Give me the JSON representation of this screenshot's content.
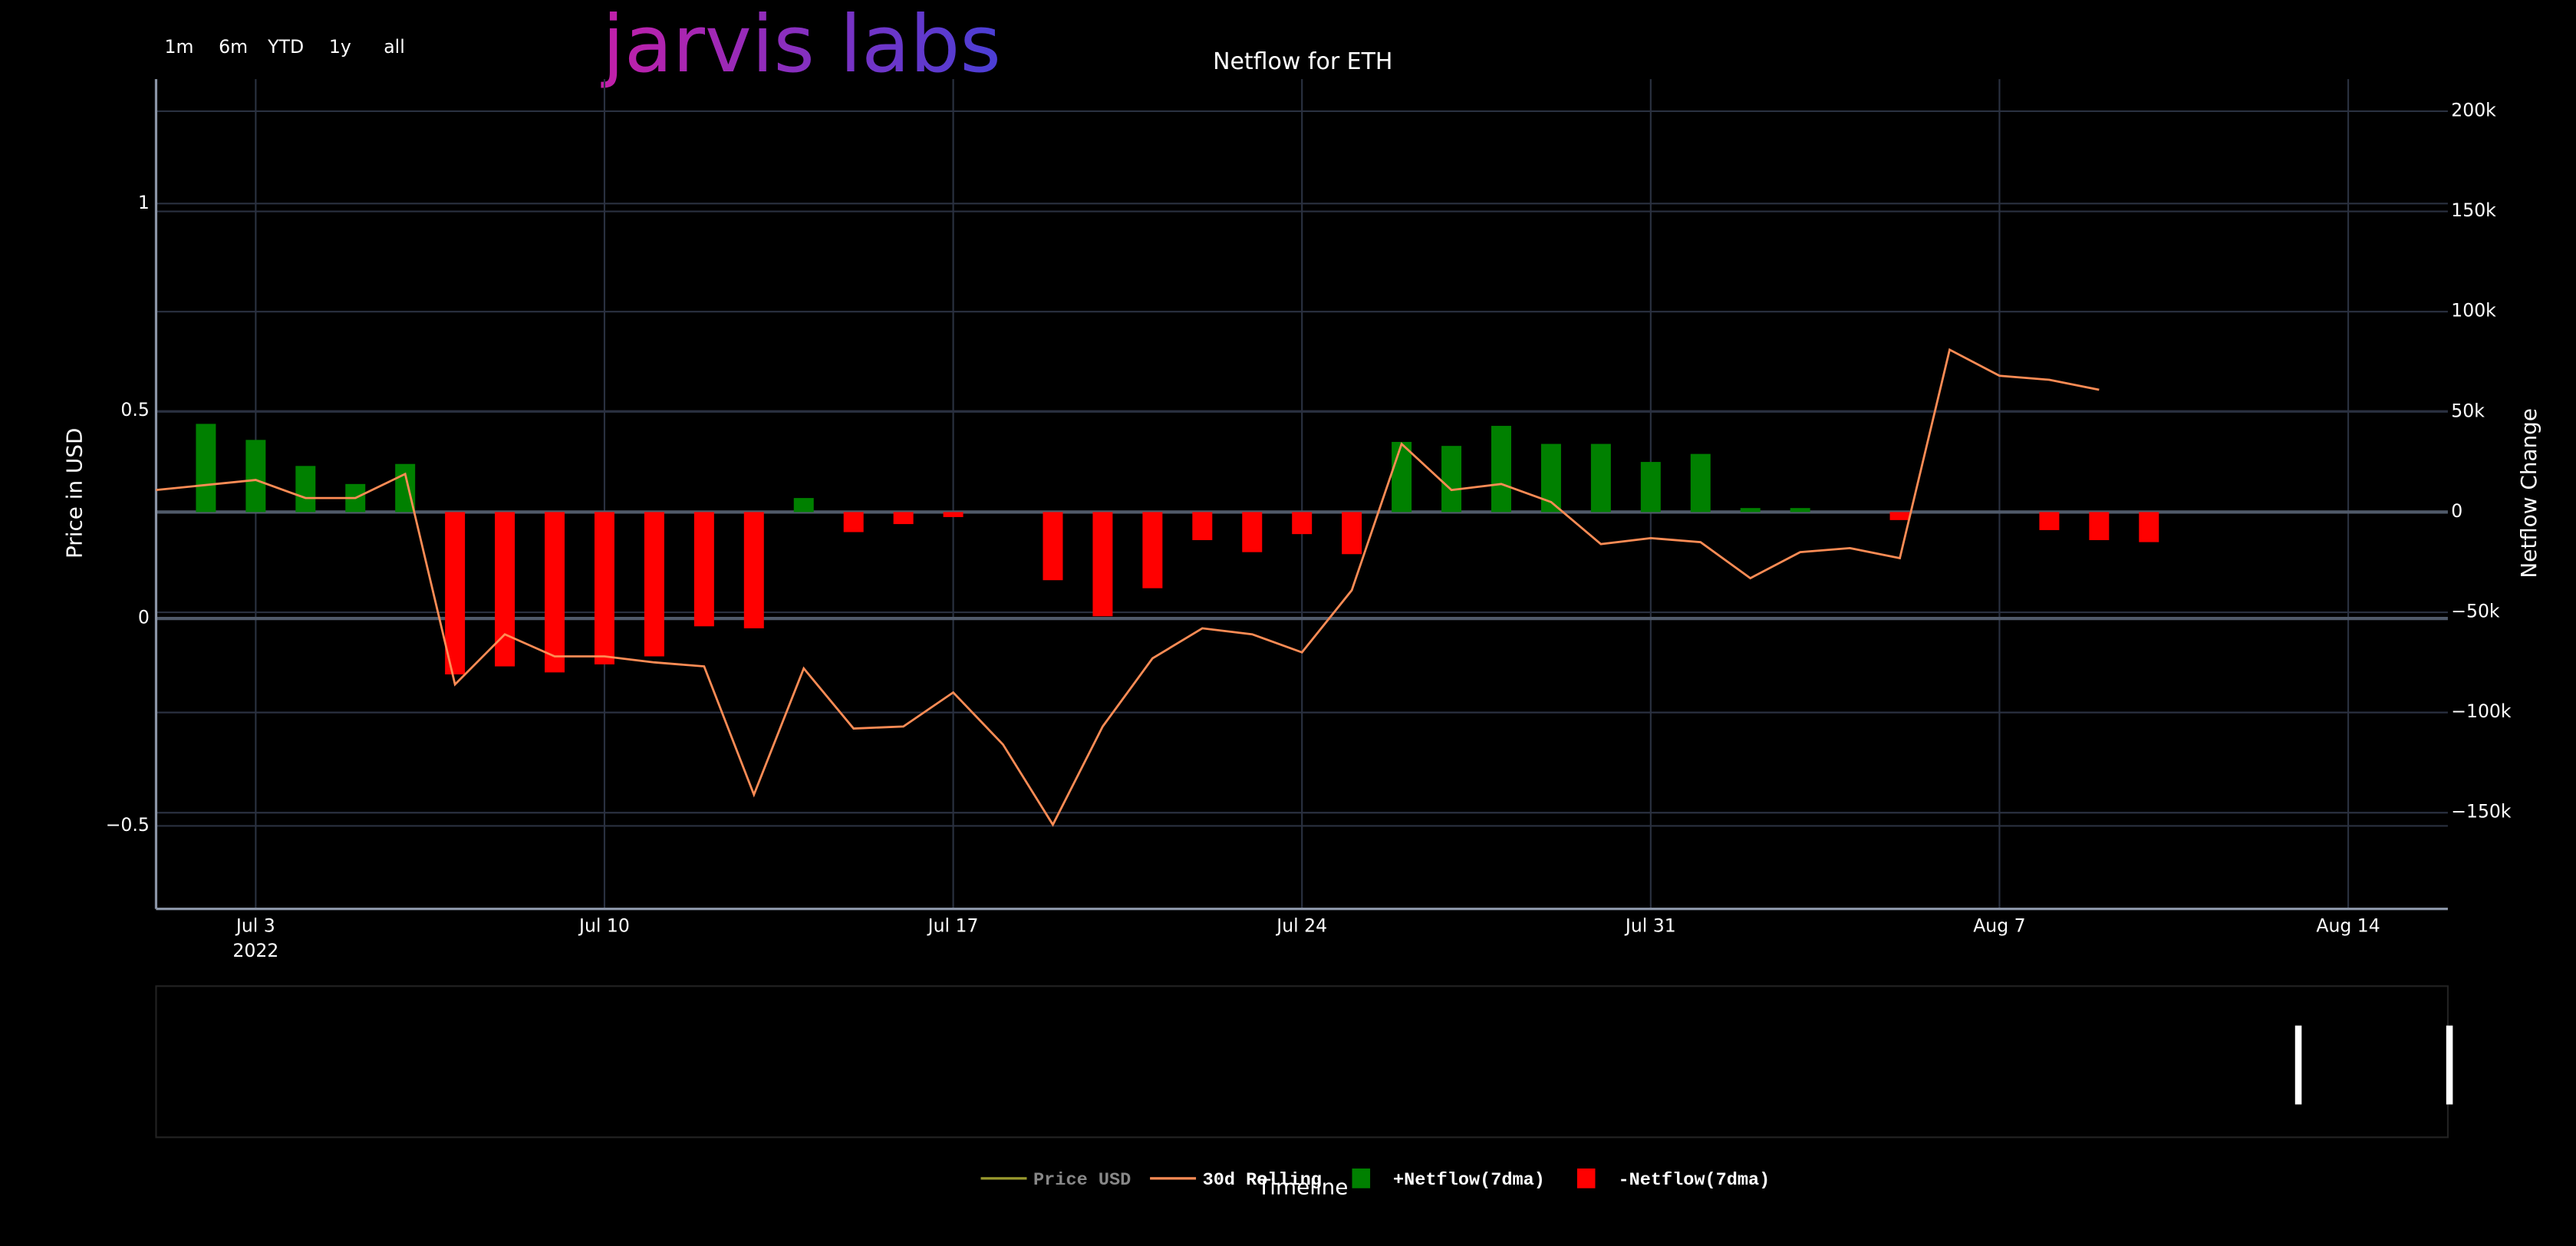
{
  "chart_data": {
    "type": "bar",
    "title": "Netflow for ETH",
    "logo": "jarvis labs",
    "buttons": [
      "1m",
      "6m",
      "YTD",
      "1y",
      "all"
    ],
    "y_label": "Price in USD",
    "y2_label": "Netflow Change",
    "x_label": "Timeline",
    "xlim": [
      "2022-07-01",
      "2022-08-16"
    ],
    "xticks": [
      {
        "value": "2022-07-03",
        "label": "Jul 3"
      },
      {
        "value": "2022-07-10",
        "label": "Jul 10"
      },
      {
        "value": "2022-07-17",
        "label": "Jul 17"
      },
      {
        "value": "2022-07-24",
        "label": "Jul 24"
      },
      {
        "value": "2022-07-31",
        "label": "Jul 31"
      },
      {
        "value": "2022-08-07",
        "label": "Aug 7"
      },
      {
        "value": "2022-08-14",
        "label": "Aug 14"
      }
    ],
    "x_year_label": "2022",
    "ylim": [
      -0.7,
      1.3
    ],
    "yticks": [
      {
        "value": -0.5,
        "label": "−0.5"
      },
      0,
      0.5,
      1
    ],
    "y2lim": [
      -198000,
      216000
    ],
    "y2ticks": [
      {
        "value": -150000,
        "label": "−150k"
      },
      {
        "value": -100000,
        "label": "−100k"
      },
      {
        "value": -50000,
        "label": "−50k"
      },
      0,
      {
        "value": 50000,
        "label": "50k"
      },
      {
        "value": 100000,
        "label": "100k"
      },
      {
        "value": 150000,
        "label": "150k"
      },
      {
        "value": 200000,
        "label": "200k"
      }
    ],
    "grid": true,
    "series": [
      {
        "name": "Price USD",
        "type": "line",
        "color": "#9a9a2e",
        "visible": false
      },
      {
        "name": "30d Rolling",
        "type": "line",
        "axis": "y2",
        "color": "#ff8c55",
        "x": [
          "2022-07-01",
          "2022-07-03",
          "2022-07-04",
          "2022-07-05",
          "2022-07-06",
          "2022-07-07",
          "2022-07-08",
          "2022-07-09",
          "2022-07-10",
          "2022-07-11",
          "2022-07-12",
          "2022-07-13",
          "2022-07-14",
          "2022-07-15",
          "2022-07-16",
          "2022-07-17",
          "2022-07-18",
          "2022-07-19",
          "2022-07-20",
          "2022-07-21",
          "2022-07-22",
          "2022-07-23",
          "2022-07-24",
          "2022-07-25",
          "2022-07-26",
          "2022-07-27",
          "2022-07-28",
          "2022-07-29",
          "2022-07-30",
          "2022-07-31",
          "2022-08-01",
          "2022-08-02",
          "2022-08-03",
          "2022-08-04",
          "2022-08-05",
          "2022-08-06",
          "2022-08-07",
          "2022-08-08",
          "2022-08-09"
        ],
        "values": [
          11000,
          16000,
          7000,
          7000,
          19000,
          -86000,
          -61000,
          -72000,
          -72000,
          -75000,
          -77000,
          -141000,
          -78000,
          -108000,
          -107000,
          -90000,
          -116000,
          -156000,
          -107000,
          -73000,
          -58000,
          -61000,
          -70000,
          -39000,
          34000,
          11000,
          14000,
          5000,
          -16000,
          -13000,
          -15000,
          -33000,
          -20000,
          -18000,
          -23000,
          81000,
          68000,
          66000,
          61000
        ]
      },
      {
        "name": "+Netflow(7dma)",
        "type": "bar",
        "axis": "y2",
        "color": "#008000",
        "x": [
          "2022-07-02",
          "2022-07-03",
          "2022-07-04",
          "2022-07-05",
          "2022-07-06",
          "2022-07-14",
          "2022-07-26",
          "2022-07-27",
          "2022-07-28",
          "2022-07-29",
          "2022-07-30",
          "2022-07-31",
          "2022-08-01",
          "2022-08-02",
          "2022-08-03"
        ],
        "values": [
          44000,
          36000,
          23000,
          14000,
          24000,
          7000,
          35000,
          33000,
          43000,
          34000,
          34000,
          25000,
          29000,
          2000,
          2000
        ]
      },
      {
        "name": "-Netflow(7dma)",
        "type": "bar",
        "axis": "y2",
        "color": "#ff0000",
        "x": [
          "2022-07-07",
          "2022-07-08",
          "2022-07-09",
          "2022-07-10",
          "2022-07-11",
          "2022-07-12",
          "2022-07-13",
          "2022-07-15",
          "2022-07-16",
          "2022-07-17",
          "2022-07-19",
          "2022-07-20",
          "2022-07-21",
          "2022-07-22",
          "2022-07-23",
          "2022-07-24",
          "2022-07-25",
          "2022-08-05",
          "2022-08-08",
          "2022-08-09",
          "2022-08-10"
        ],
        "values": [
          -81000,
          -77000,
          -80000,
          -76000,
          -72000,
          -57000,
          -58000,
          -10000,
          -6000,
          -2500,
          -34000,
          -52000,
          -38000,
          -14000,
          -20000,
          -11000,
          -21000,
          -4000,
          -9000,
          -14000,
          -15000
        ]
      }
    ]
  }
}
